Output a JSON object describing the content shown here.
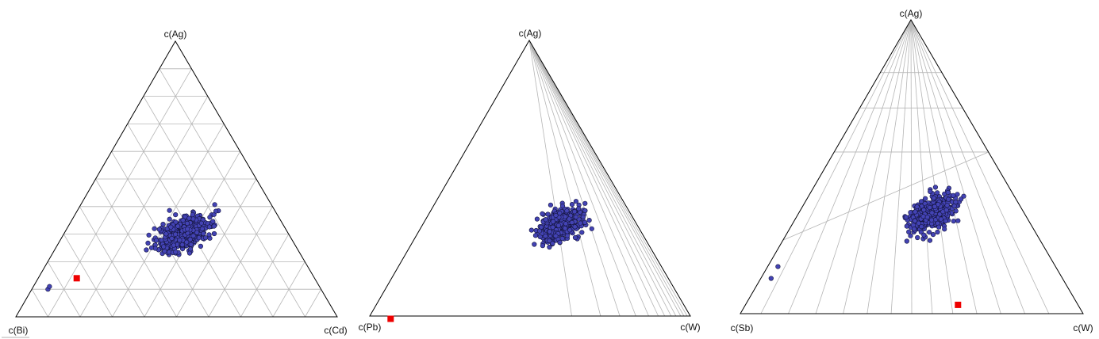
{
  "chart_data": [
    {
      "type": "scatter",
      "subtype": "ternary",
      "vertices": {
        "top": "c(Ag)",
        "left": "c(Bi)",
        "right": "c(Cd)"
      },
      "grid": "isolines",
      "cluster": {
        "top": 0.3,
        "right": 0.37,
        "left": 0.33,
        "spread": 0.035,
        "count": 520
      },
      "outliers": [
        {
          "top": 0.1,
          "right": 0.05,
          "left": 0.85
        },
        {
          "top": 0.11,
          "right": 0.05,
          "left": 0.84
        }
      ],
      "marker": {
        "top": 0.14,
        "right": 0.12,
        "left": 0.74
      },
      "colors": {
        "points": "#4343b4",
        "point_edge": "#14143c",
        "marker": "#ee0000",
        "frame": "#000000",
        "grid": "#b5b5b5"
      }
    },
    {
      "type": "scatter",
      "subtype": "ternary",
      "vertices": {
        "top": "c(Ag)",
        "left": "c(Pb)",
        "right": "c(W)"
      },
      "grid": "fan-from-apex",
      "cluster": {
        "top": 0.33,
        "right": 0.43,
        "left": 0.24,
        "spread": 0.03,
        "count": 430
      },
      "outliers": [],
      "marker": {
        "top": -0.01,
        "right": 0.07,
        "left": 0.94
      },
      "colors": {
        "points": "#4343b4",
        "point_edge": "#14143c",
        "marker": "#ee0000",
        "frame": "#000000",
        "grid": "#b5b5b5"
      }
    },
    {
      "type": "scatter",
      "subtype": "ternary",
      "vertices": {
        "top": "c(Ag)",
        "left": "c(Sb)",
        "right": "c(W)"
      },
      "grid": "fan-from-apex",
      "cluster": {
        "top": 0.34,
        "right": 0.39,
        "left": 0.27,
        "spread": 0.03,
        "count": 430
      },
      "outliers": [
        {
          "top": 0.12,
          "right": 0.03,
          "left": 0.85
        },
        {
          "top": 0.16,
          "right": 0.03,
          "left": 0.81
        }
      ],
      "marker": {
        "top": 0.03,
        "right": 0.62,
        "left": 0.35
      },
      "colors": {
        "points": "#4343b4",
        "point_edge": "#14143c",
        "marker": "#ee0000",
        "frame": "#000000",
        "grid": "#b5b5b5"
      }
    }
  ]
}
